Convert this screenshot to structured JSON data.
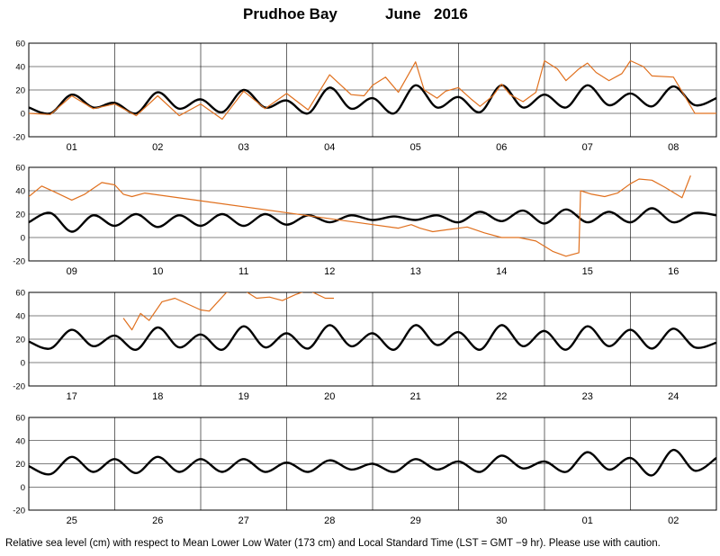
{
  "header": {
    "station": "Prudhoe Bay",
    "month": "June",
    "year": "2016"
  },
  "footer": {
    "note": "Relative sea level (cm) with respect to Mean Lower Low Water (173 cm) and Local Standard Time (LST = GMT −9 hr). Please use with caution."
  },
  "colors": {
    "predicted": "#000000",
    "observed": "#e0701e"
  },
  "chart_data": [
    {
      "type": "line",
      "day_labels": [
        "01",
        "02",
        "03",
        "04",
        "05",
        "06",
        "07",
        "08"
      ],
      "ylim": [
        -20,
        60
      ],
      "yticks": [
        -20,
        0,
        20,
        40,
        60
      ],
      "series": [
        {
          "role": "predicted",
          "x": [
            0,
            0.25,
            0.5,
            0.75,
            1,
            1.25,
            1.5,
            1.75,
            2,
            2.25,
            2.5,
            2.75,
            3,
            3.25,
            3.5,
            3.75,
            4,
            4.25,
            4.5,
            4.75,
            5,
            5.25,
            5.5,
            5.75,
            6,
            6.25,
            6.5,
            6.75,
            7,
            7.25,
            7.5,
            7.75,
            8
          ],
          "y": [
            5,
            0,
            16,
            5,
            9,
            0,
            18,
            4,
            12,
            1,
            20,
            5,
            11,
            0,
            22,
            4,
            13,
            0,
            24,
            5,
            14,
            1,
            24,
            5,
            16,
            5,
            24,
            7,
            17,
            6,
            23,
            7,
            13
          ]
        },
        {
          "role": "observed",
          "x": [
            0,
            0.25,
            0.5,
            0.75,
            1,
            1.25,
            1.5,
            1.75,
            2,
            2.25,
            2.5,
            2.75,
            3,
            3.25,
            3.5,
            3.75,
            3.9,
            4,
            4.15,
            4.3,
            4.5,
            4.6,
            4.75,
            4.85,
            5,
            5.15,
            5.25,
            5.4,
            5.5,
            5.6,
            5.75,
            5.9,
            6,
            6.15,
            6.25,
            6.4,
            6.5,
            6.6,
            6.75,
            6.9,
            7,
            7.15,
            7.25,
            7.5,
            7.75,
            7.9,
            8
          ],
          "y": [
            0,
            -1,
            15,
            4,
            8,
            -2,
            15,
            -2,
            8,
            -5,
            19,
            4,
            17,
            3,
            33,
            16,
            15,
            24,
            31,
            18,
            44,
            20,
            13,
            19,
            22,
            12,
            6,
            15,
            25,
            16,
            10,
            18,
            45,
            38,
            28,
            38,
            43,
            35,
            28,
            34,
            45,
            40,
            32,
            31,
            0,
            0,
            0
          ]
        }
      ]
    },
    {
      "type": "line",
      "day_labels": [
        "09",
        "10",
        "11",
        "12",
        "13",
        "14",
        "15",
        "16"
      ],
      "ylim": [
        -20,
        60
      ],
      "yticks": [
        -20,
        0,
        20,
        40,
        60
      ],
      "series": [
        {
          "role": "predicted",
          "x": [
            0,
            0.25,
            0.5,
            0.75,
            1,
            1.25,
            1.5,
            1.75,
            2,
            2.25,
            2.5,
            2.75,
            3,
            3.25,
            3.5,
            3.75,
            4,
            4.25,
            4.5,
            4.75,
            5,
            5.25,
            5.5,
            5.75,
            6,
            6.25,
            6.5,
            6.75,
            7,
            7.25,
            7.5,
            7.75,
            8
          ],
          "y": [
            13,
            21,
            5,
            19,
            10,
            20,
            9,
            19,
            10,
            20,
            10,
            20,
            11,
            19,
            13,
            19,
            15,
            18,
            15,
            19,
            13,
            22,
            14,
            23,
            12,
            24,
            13,
            22,
            13,
            25,
            13,
            21,
            19
          ]
        },
        {
          "role": "observed",
          "x": [
            0,
            0.15,
            0.3,
            0.5,
            0.65,
            0.85,
            1,
            1.1,
            1.2,
            1.35,
            4.3,
            4.45,
            4.55,
            4.7,
            4.9,
            5.1,
            5.3,
            5.5,
            5.7,
            5.9,
            6.1,
            6.25,
            6.4,
            6.42,
            6.55,
            6.7,
            6.85,
            7,
            7.1,
            7.25,
            7.4,
            7.6,
            7.7
          ],
          "y": [
            35,
            44,
            39,
            32,
            37,
            47,
            45,
            37,
            35,
            38,
            8,
            11,
            8,
            5,
            7,
            9,
            4,
            0,
            0,
            -3,
            -12,
            -16,
            -13,
            40,
            37,
            35,
            38,
            46,
            50,
            49,
            43,
            34,
            53
          ]
        }
      ]
    },
    {
      "type": "line",
      "day_labels": [
        "17",
        "18",
        "19",
        "20",
        "21",
        "22",
        "23",
        "24"
      ],
      "ylim": [
        -20,
        60
      ],
      "yticks": [
        -20,
        0,
        20,
        40,
        60
      ],
      "series": [
        {
          "role": "predicted",
          "x": [
            0,
            0.25,
            0.5,
            0.75,
            1,
            1.25,
            1.5,
            1.75,
            2,
            2.25,
            2.5,
            2.75,
            3,
            3.25,
            3.5,
            3.75,
            4,
            4.25,
            4.5,
            4.75,
            5,
            5.25,
            5.5,
            5.75,
            6,
            6.25,
            6.5,
            6.75,
            7,
            7.25,
            7.5,
            7.75,
            8
          ],
          "y": [
            18,
            12,
            28,
            14,
            23,
            11,
            30,
            13,
            24,
            11,
            31,
            13,
            25,
            12,
            32,
            14,
            25,
            11,
            32,
            15,
            26,
            11,
            32,
            14,
            27,
            11,
            31,
            14,
            28,
            12,
            29,
            13,
            17
          ]
        },
        {
          "role": "observed",
          "x": [
            1.1,
            1.2,
            1.3,
            1.4,
            1.55,
            1.7,
            1.85,
            2,
            2.1,
            2.3,
            2.5,
            2.65,
            2.8,
            2.95,
            3.1,
            3.25,
            3.45,
            3.55
          ],
          "y": [
            38,
            28,
            42,
            36,
            52,
            55,
            50,
            45,
            44,
            60,
            62,
            55,
            56,
            53,
            58,
            62,
            55,
            55
          ]
        }
      ]
    },
    {
      "type": "line",
      "day_labels": [
        "25",
        "26",
        "27",
        "28",
        "29",
        "30",
        "01",
        "02"
      ],
      "ylim": [
        -20,
        60
      ],
      "yticks": [
        -20,
        0,
        20,
        40,
        60
      ],
      "series": [
        {
          "role": "predicted",
          "x": [
            0,
            0.25,
            0.5,
            0.75,
            1,
            1.25,
            1.5,
            1.75,
            2,
            2.25,
            2.5,
            2.75,
            3,
            3.25,
            3.5,
            3.75,
            4,
            4.25,
            4.5,
            4.75,
            5,
            5.25,
            5.5,
            5.75,
            6,
            6.25,
            6.5,
            6.75,
            7,
            7.25,
            7.5,
            7.75,
            8
          ],
          "y": [
            18,
            11,
            26,
            13,
            24,
            12,
            26,
            13,
            24,
            13,
            24,
            13,
            21,
            13,
            23,
            15,
            20,
            13,
            24,
            15,
            22,
            13,
            27,
            16,
            22,
            13,
            30,
            15,
            25,
            10,
            32,
            14,
            25
          ]
        }
      ]
    }
  ]
}
